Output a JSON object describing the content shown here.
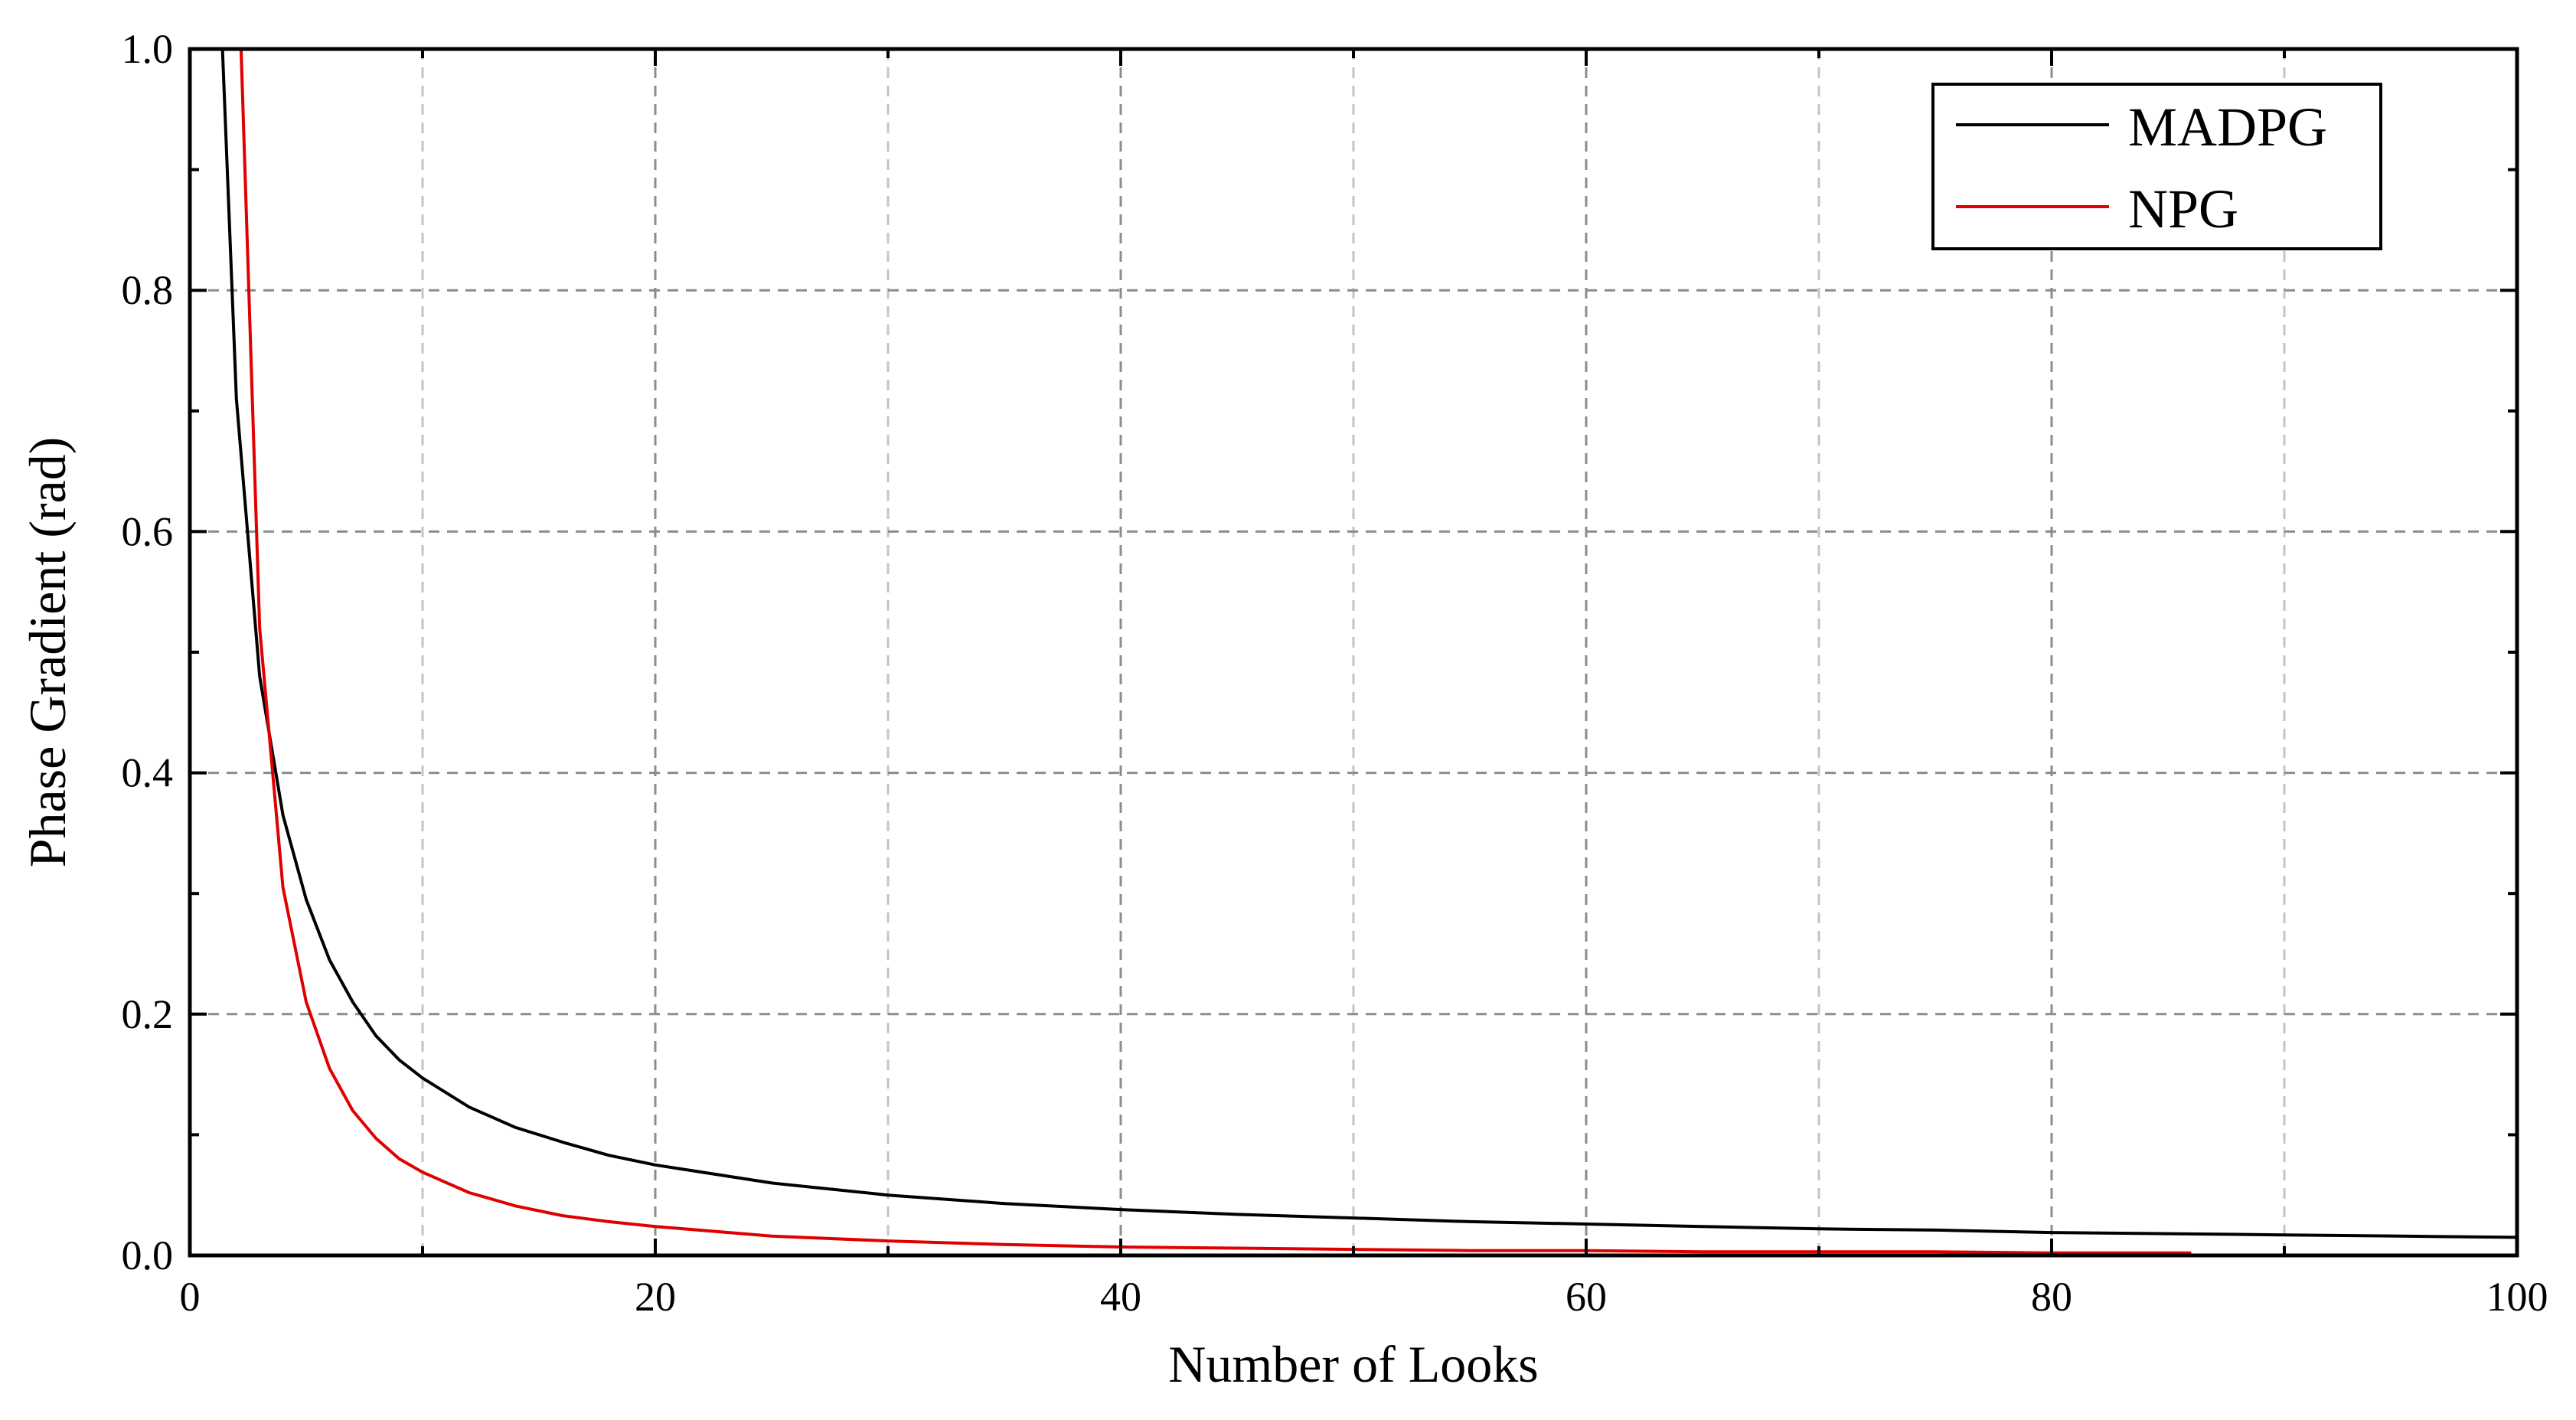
{
  "chart_data": {
    "type": "line",
    "title": "",
    "xlabel": "Number of Looks",
    "ylabel": "Phase Gradient (rad)",
    "xlim": [
      0,
      100
    ],
    "ylim": [
      0,
      1.0
    ],
    "x_ticks": [
      "0",
      "20",
      "40",
      "60",
      "80",
      "100"
    ],
    "y_ticks": [
      "0.0",
      "0.2",
      "0.4",
      "0.6",
      "0.8",
      "1.0"
    ],
    "grid": true,
    "legend_position": "top-right",
    "series": [
      {
        "name": "MADPG",
        "color": "#000000",
        "x": [
          1.4,
          2,
          3,
          4,
          5,
          6,
          7,
          8,
          9,
          10,
          12,
          14,
          16,
          18,
          20,
          25,
          30,
          35,
          40,
          45,
          50,
          55,
          60,
          65,
          70,
          75,
          80,
          85,
          90,
          95,
          100
        ],
        "y": [
          1.0,
          0.71,
          0.48,
          0.365,
          0.295,
          0.245,
          0.21,
          0.182,
          0.162,
          0.147,
          0.123,
          0.106,
          0.094,
          0.083,
          0.075,
          0.06,
          0.05,
          0.043,
          0.038,
          0.034,
          0.031,
          0.028,
          0.026,
          0.024,
          0.022,
          0.021,
          0.019,
          0.018,
          0.017,
          0.016,
          0.015
        ]
      },
      {
        "name": "NPG",
        "color": "#e00000",
        "x": [
          2.2,
          3,
          4,
          5,
          6,
          7,
          8,
          9,
          10,
          12,
          14,
          16,
          18,
          20,
          25,
          30,
          35,
          40,
          45,
          50,
          55,
          60,
          65,
          70,
          75,
          80,
          86
        ],
        "y": [
          1.0,
          0.52,
          0.305,
          0.21,
          0.155,
          0.12,
          0.097,
          0.08,
          0.069,
          0.052,
          0.041,
          0.033,
          0.028,
          0.024,
          0.016,
          0.012,
          0.009,
          0.007,
          0.006,
          0.005,
          0.004,
          0.004,
          0.003,
          0.003,
          0.003,
          0.002,
          0.002
        ]
      }
    ]
  }
}
